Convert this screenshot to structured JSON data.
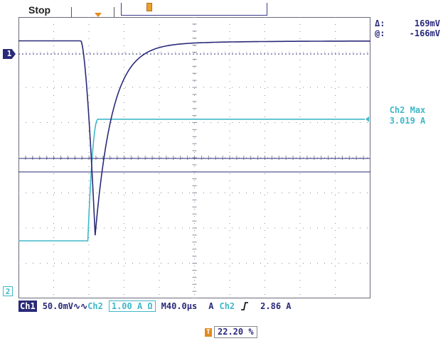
{
  "status": {
    "run_state": "Stop"
  },
  "cursors": {
    "delta_label": "Δ:",
    "delta_value": "169mV",
    "at_label": "@:",
    "at_value": "-166mV"
  },
  "measurement": {
    "label": "Ch2 Max",
    "value": "3.019 A"
  },
  "channel_markers": {
    "ch1": "1",
    "ch2": "2"
  },
  "trigger_marker": "T",
  "settings_bar": {
    "ch1_label": "Ch1",
    "ch1_scale": "50.0mV",
    "ch1_coupling_icon": "∿∿",
    "ch2_label": "Ch2",
    "ch2_scale": "1.00 A Ω",
    "timebase_label": "M",
    "timebase_value": "40.0µs",
    "trigger_mode": "A",
    "trigger_source": "Ch2",
    "trigger_slope_icon": "rising-edge",
    "trigger_level": "2.86 A"
  },
  "reference_readout": {
    "value": "22.20 %"
  },
  "colors": {
    "ch1": "#2a2a7a",
    "ch2": "#40b8c8",
    "grid": "#8a8a9a",
    "marker": "#e48a1e"
  },
  "waveforms": {
    "ch1": {
      "description_free": true,
      "baseline_div": 1.0,
      "min_div": 5.6,
      "dip_time_div": 2.3
    },
    "ch2": {
      "low_div": 6.0,
      "high_div": 2.4,
      "step_time_div": 2.05
    }
  }
}
